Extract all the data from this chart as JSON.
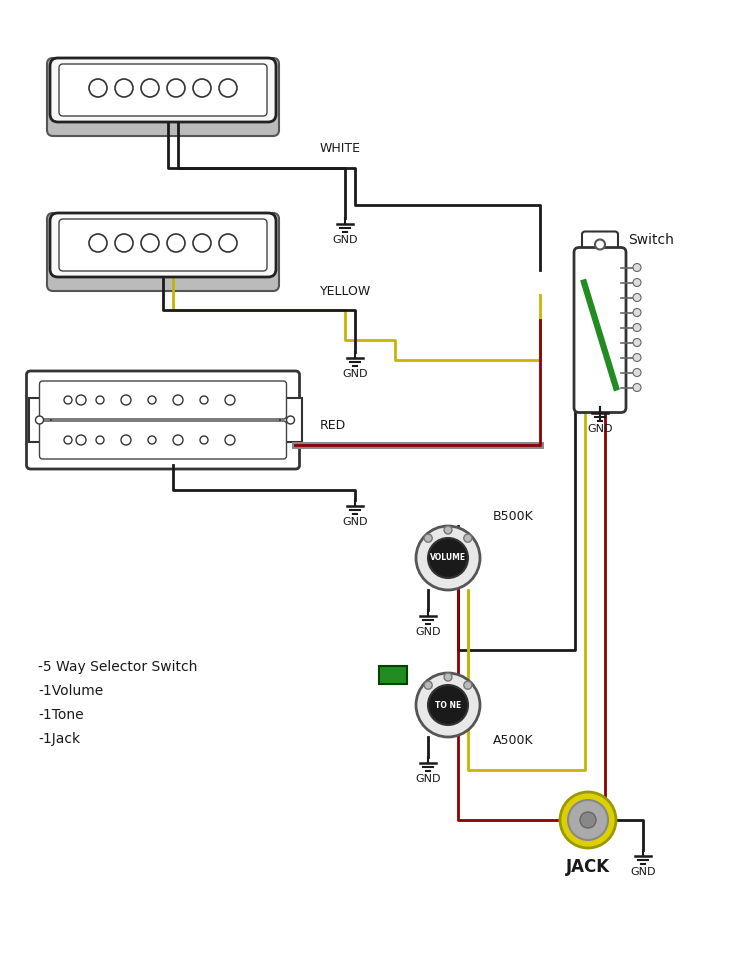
{
  "bg_color": "#ffffff",
  "labels": {
    "white": "WHITE",
    "yellow": "YELLOW",
    "red": "RED",
    "switch": "Switch",
    "b500k": "B500K",
    "volume": "VOLUME",
    "a500k": "A500K",
    "tone": "TO NE",
    "jack": "JACK",
    "gnd": "GND",
    "specs": "-5 Way Selector Switch\n-1Volume\n-1Tone\n-1Jack"
  },
  "colors": {
    "black": "#1a1a1a",
    "white": "#ffffff",
    "gray": "#888888",
    "light_gray": "#cccccc",
    "dark_gray": "#555555",
    "wire_black": "#1a1a1a",
    "wire_yellow": "#c8b400",
    "wire_red": "#8b0000",
    "wire_gray": "#999999",
    "pickup_fill": "#ffffff",
    "pickup_border": "#333333",
    "pickup_base": "#aaaaaa",
    "switch_fill": "#ffffff",
    "switch_green": "#228B22",
    "pot_outer": "#cccccc",
    "pot_knob": "#222222",
    "pot_lug": "#888888",
    "jack_outer": "#e0d800",
    "jack_inner": "#aaaaaa",
    "cap_green": "#228B22"
  }
}
